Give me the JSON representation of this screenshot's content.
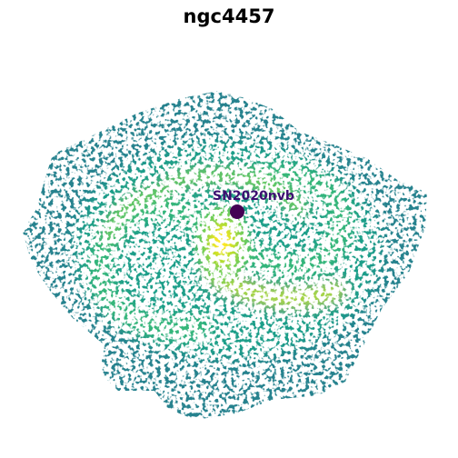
{
  "title": "ngc4457",
  "marker": {
    "label": "SN2020nvb",
    "color": "#440154"
  },
  "colormap": [
    "#26828e",
    "#1f9e89",
    "#35b779",
    "#6ece58",
    "#b5de2b",
    "#fde725"
  ]
}
